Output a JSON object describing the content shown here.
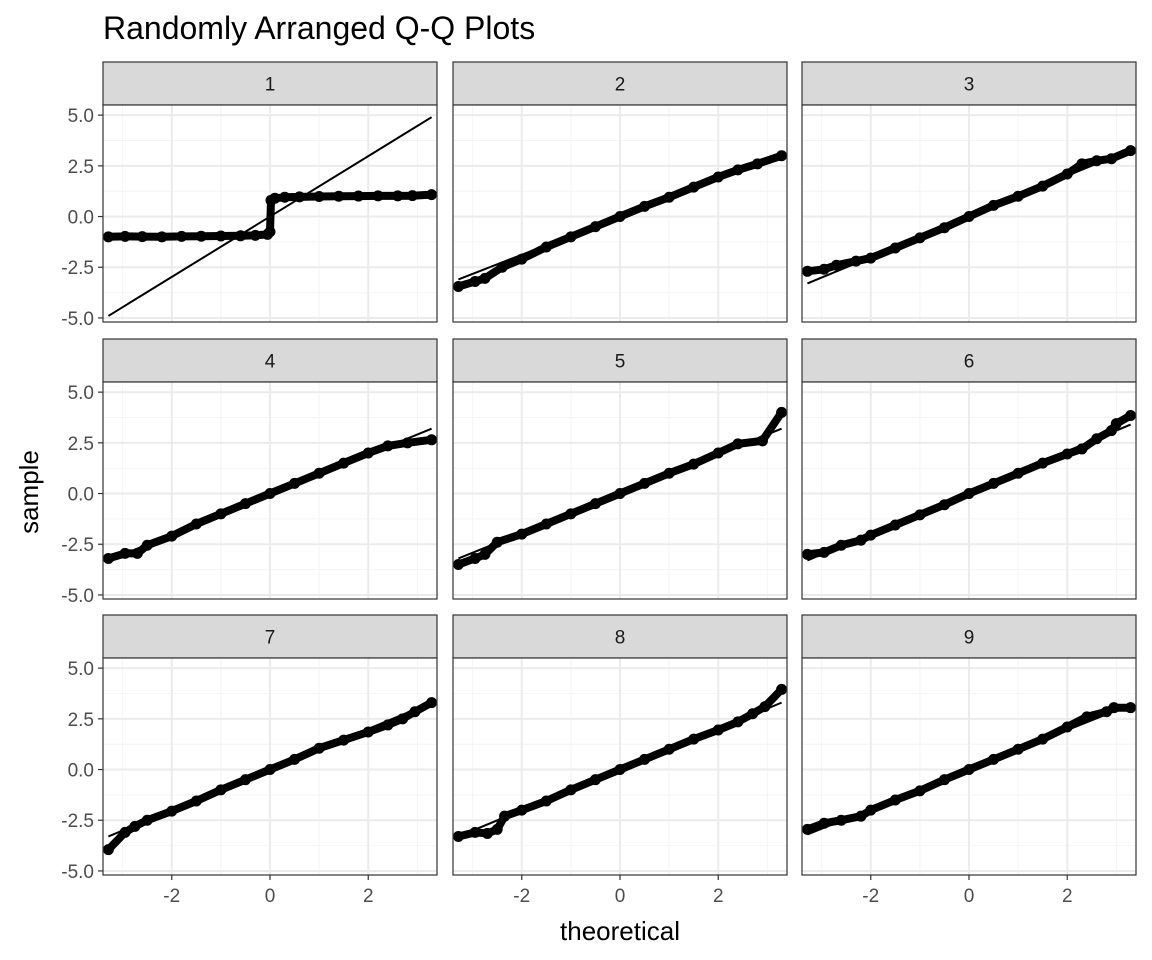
{
  "chart_data": {
    "type": "scatter",
    "title": "Randomly Arranged Q-Q Plots",
    "xlabel": "theoretical",
    "ylabel": "sample",
    "xlim": [
      -3.4,
      3.4
    ],
    "ylim": [
      -5.2,
      5.5
    ],
    "xticks": [
      -2,
      0,
      2
    ],
    "xtick_labels": [
      "-2",
      "0",
      "2"
    ],
    "yticks": [
      -5,
      -2.5,
      0,
      2.5,
      5
    ],
    "ytick_labels": [
      "-5.0",
      "-2.5",
      "0.0",
      "2.5",
      "5.0"
    ],
    "grid": true,
    "legend": "none",
    "colors": {
      "points": "#000000",
      "line": "#000000",
      "strip_fill": "#d9d9d9",
      "grid_major": "#ebebeb",
      "grid_minor": "#f4f4f4",
      "panel_border": "#333333"
    },
    "panels": [
      {
        "label": "1",
        "line": {
          "x": [
            -3.29,
            3.29
          ],
          "y": [
            -4.9,
            4.9
          ]
        },
        "points": [
          [
            -3.29,
            -1.0
          ],
          [
            -2.95,
            -0.98
          ],
          [
            -2.6,
            -0.99
          ],
          [
            -2.2,
            -1.0
          ],
          [
            -1.8,
            -0.98
          ],
          [
            -1.4,
            -0.97
          ],
          [
            -1.0,
            -0.96
          ],
          [
            -0.6,
            -0.95
          ],
          [
            -0.3,
            -0.93
          ],
          [
            -0.05,
            -0.88
          ],
          [
            0.0,
            -0.75
          ],
          [
            0.02,
            0.8
          ],
          [
            0.1,
            0.9
          ],
          [
            0.3,
            0.95
          ],
          [
            0.6,
            0.97
          ],
          [
            1.0,
            0.99
          ],
          [
            1.4,
            1.0
          ],
          [
            1.8,
            1.01
          ],
          [
            2.2,
            1.02
          ],
          [
            2.6,
            1.02
          ],
          [
            2.9,
            1.03
          ],
          [
            3.29,
            1.08
          ]
        ]
      },
      {
        "label": "2",
        "line": {
          "x": [
            -3.29,
            3.29
          ],
          "y": [
            -3.1,
            3.1
          ]
        },
        "points": [
          [
            -3.29,
            -3.45
          ],
          [
            -2.95,
            -3.2
          ],
          [
            -2.75,
            -3.05
          ],
          [
            -2.4,
            -2.5
          ],
          [
            -2.0,
            -2.1
          ],
          [
            -1.5,
            -1.5
          ],
          [
            -1.0,
            -1.0
          ],
          [
            -0.5,
            -0.5
          ],
          [
            0.0,
            0.0
          ],
          [
            0.5,
            0.5
          ],
          [
            1.0,
            0.95
          ],
          [
            1.5,
            1.45
          ],
          [
            2.0,
            1.95
          ],
          [
            2.4,
            2.3
          ],
          [
            2.8,
            2.6
          ],
          [
            3.29,
            3.0
          ]
        ]
      },
      {
        "label": "3",
        "line": {
          "x": [
            -3.29,
            3.29
          ],
          "y": [
            -3.3,
            3.3
          ]
        },
        "points": [
          [
            -3.29,
            -2.7
          ],
          [
            -2.95,
            -2.6
          ],
          [
            -2.7,
            -2.4
          ],
          [
            -2.3,
            -2.2
          ],
          [
            -2.0,
            -2.05
          ],
          [
            -1.5,
            -1.55
          ],
          [
            -1.0,
            -1.05
          ],
          [
            -0.5,
            -0.55
          ],
          [
            0.0,
            0.0
          ],
          [
            0.5,
            0.55
          ],
          [
            1.0,
            1.0
          ],
          [
            1.5,
            1.5
          ],
          [
            2.0,
            2.1
          ],
          [
            2.3,
            2.6
          ],
          [
            2.6,
            2.75
          ],
          [
            2.9,
            2.85
          ],
          [
            3.29,
            3.25
          ]
        ]
      },
      {
        "label": "4",
        "line": {
          "x": [
            -3.29,
            3.29
          ],
          "y": [
            -3.3,
            3.2
          ]
        },
        "points": [
          [
            -3.29,
            -3.2
          ],
          [
            -2.95,
            -2.95
          ],
          [
            -2.7,
            -2.95
          ],
          [
            -2.5,
            -2.55
          ],
          [
            -2.0,
            -2.1
          ],
          [
            -1.5,
            -1.5
          ],
          [
            -1.0,
            -1.0
          ],
          [
            -0.5,
            -0.5
          ],
          [
            0.0,
            0.0
          ],
          [
            0.5,
            0.5
          ],
          [
            1.0,
            1.0
          ],
          [
            1.5,
            1.5
          ],
          [
            2.0,
            2.0
          ],
          [
            2.4,
            2.35
          ],
          [
            2.8,
            2.5
          ],
          [
            3.29,
            2.65
          ]
        ]
      },
      {
        "label": "5",
        "line": {
          "x": [
            -3.29,
            3.29
          ],
          "y": [
            -3.2,
            3.2
          ]
        },
        "points": [
          [
            -3.29,
            -3.5
          ],
          [
            -2.95,
            -3.2
          ],
          [
            -2.75,
            -3.0
          ],
          [
            -2.5,
            -2.4
          ],
          [
            -2.0,
            -2.0
          ],
          [
            -1.5,
            -1.5
          ],
          [
            -1.0,
            -1.0
          ],
          [
            -0.5,
            -0.5
          ],
          [
            0.0,
            0.0
          ],
          [
            0.5,
            0.5
          ],
          [
            1.0,
            1.0
          ],
          [
            1.5,
            1.45
          ],
          [
            2.0,
            2.0
          ],
          [
            2.4,
            2.45
          ],
          [
            2.9,
            2.6
          ],
          [
            3.29,
            4.0
          ]
        ]
      },
      {
        "label": "6",
        "line": {
          "x": [
            -3.29,
            3.29
          ],
          "y": [
            -3.3,
            3.4
          ]
        },
        "points": [
          [
            -3.29,
            -3.0
          ],
          [
            -2.95,
            -2.9
          ],
          [
            -2.6,
            -2.55
          ],
          [
            -2.2,
            -2.3
          ],
          [
            -2.0,
            -2.05
          ],
          [
            -1.5,
            -1.55
          ],
          [
            -1.0,
            -1.05
          ],
          [
            -0.5,
            -0.55
          ],
          [
            0.0,
            0.0
          ],
          [
            0.5,
            0.5
          ],
          [
            1.0,
            1.0
          ],
          [
            1.5,
            1.5
          ],
          [
            2.0,
            1.95
          ],
          [
            2.3,
            2.2
          ],
          [
            2.6,
            2.7
          ],
          [
            2.9,
            3.1
          ],
          [
            3.0,
            3.45
          ],
          [
            3.29,
            3.85
          ]
        ]
      },
      {
        "label": "7",
        "line": {
          "x": [
            -3.29,
            3.29
          ],
          "y": [
            -3.3,
            3.3
          ]
        },
        "points": [
          [
            -3.29,
            -3.95
          ],
          [
            -2.95,
            -3.1
          ],
          [
            -2.75,
            -2.8
          ],
          [
            -2.5,
            -2.5
          ],
          [
            -2.0,
            -2.05
          ],
          [
            -1.5,
            -1.55
          ],
          [
            -1.0,
            -1.0
          ],
          [
            -0.5,
            -0.5
          ],
          [
            0.0,
            0.0
          ],
          [
            0.5,
            0.5
          ],
          [
            1.0,
            1.05
          ],
          [
            1.5,
            1.45
          ],
          [
            2.0,
            1.85
          ],
          [
            2.4,
            2.2
          ],
          [
            2.7,
            2.5
          ],
          [
            2.95,
            2.85
          ],
          [
            3.29,
            3.3
          ]
        ]
      },
      {
        "label": "8",
        "line": {
          "x": [
            -3.29,
            3.29
          ],
          "y": [
            -3.3,
            3.3
          ]
        },
        "points": [
          [
            -3.29,
            -3.3
          ],
          [
            -2.95,
            -3.1
          ],
          [
            -2.7,
            -3.15
          ],
          [
            -2.5,
            -2.95
          ],
          [
            -2.35,
            -2.3
          ],
          [
            -2.0,
            -2.0
          ],
          [
            -1.5,
            -1.55
          ],
          [
            -1.0,
            -1.0
          ],
          [
            -0.5,
            -0.5
          ],
          [
            0.0,
            0.0
          ],
          [
            0.5,
            0.5
          ],
          [
            1.0,
            1.0
          ],
          [
            1.5,
            1.5
          ],
          [
            2.0,
            1.95
          ],
          [
            2.4,
            2.35
          ],
          [
            2.7,
            2.75
          ],
          [
            2.95,
            3.1
          ],
          [
            3.29,
            3.95
          ]
        ]
      },
      {
        "label": "9",
        "line": {
          "x": [
            -3.29,
            3.29
          ],
          "y": [
            -3.2,
            3.2
          ]
        },
        "points": [
          [
            -3.29,
            -2.95
          ],
          [
            -2.95,
            -2.65
          ],
          [
            -2.6,
            -2.5
          ],
          [
            -2.2,
            -2.3
          ],
          [
            -2.0,
            -2.0
          ],
          [
            -1.5,
            -1.5
          ],
          [
            -1.0,
            -1.05
          ],
          [
            -0.5,
            -0.5
          ],
          [
            0.0,
            0.0
          ],
          [
            0.5,
            0.5
          ],
          [
            1.0,
            1.0
          ],
          [
            1.5,
            1.5
          ],
          [
            2.0,
            2.1
          ],
          [
            2.4,
            2.6
          ],
          [
            2.8,
            2.85
          ],
          [
            2.95,
            3.05
          ],
          [
            3.29,
            3.05
          ]
        ]
      }
    ]
  }
}
